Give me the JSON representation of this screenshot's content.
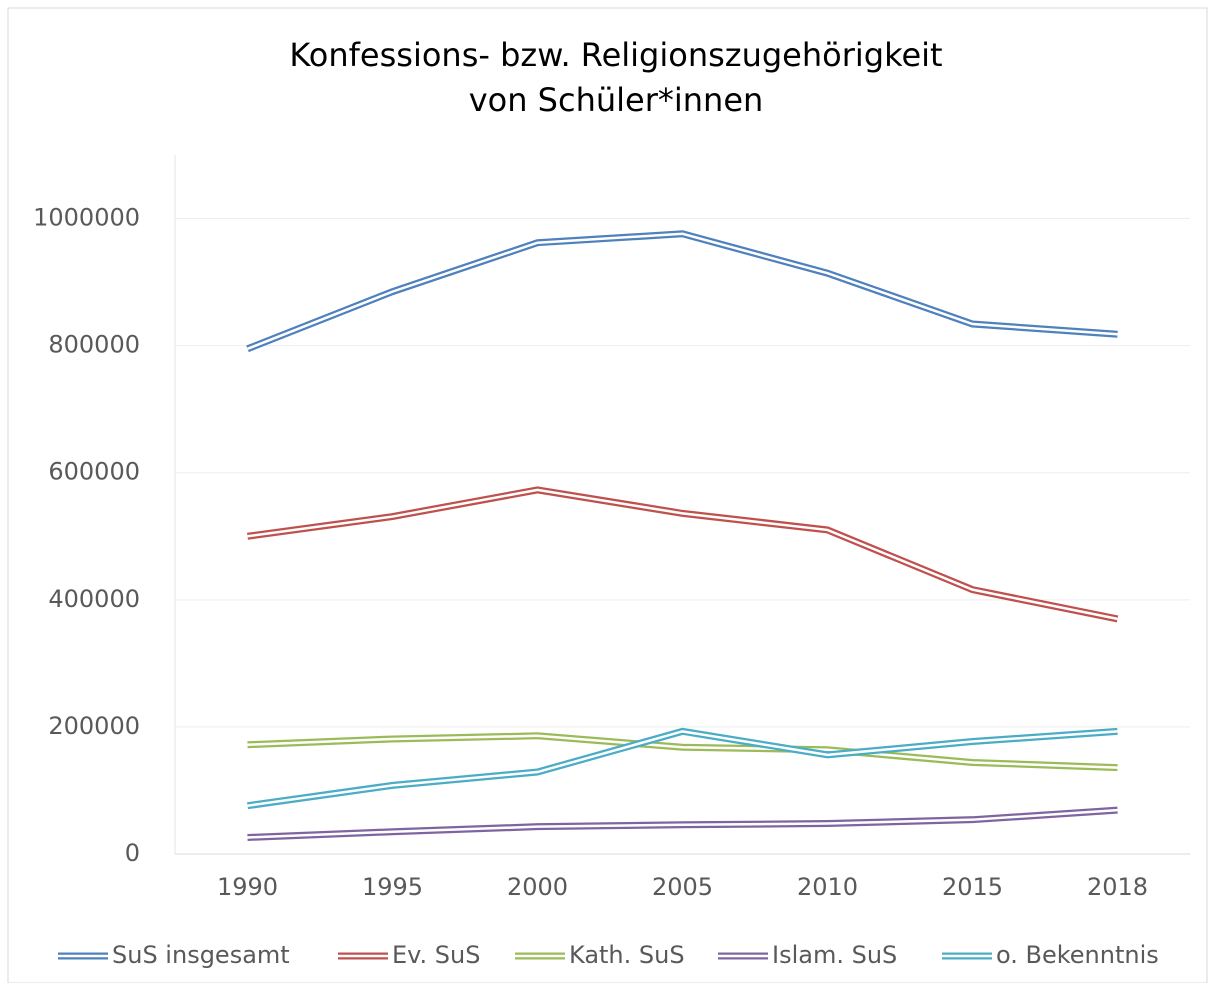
{
  "chart_data": {
    "type": "line",
    "title": [
      "Konfessions- bzw. Religionszugehörigkeit",
      "von Schüler*innen"
    ],
    "categories": [
      "1990",
      "1995",
      "2000",
      "2005",
      "2010",
      "2015",
      "2018"
    ],
    "series": [
      {
        "name": "SuS insgesamt",
        "color": "#4f81bd",
        "values": [
          795000,
          885000,
          962000,
          976000,
          914000,
          834000,
          818000
        ]
      },
      {
        "name": "Ev. SuS",
        "color": "#c0504d",
        "values": [
          500000,
          531000,
          573000,
          536000,
          510000,
          416000,
          370000
        ]
      },
      {
        "name": "Kath. SuS",
        "color": "#9bbb59",
        "values": [
          172000,
          181000,
          186000,
          168000,
          164000,
          144000,
          136000
        ]
      },
      {
        "name": "Islam. SuS",
        "color": "#8064a2",
        "values": [
          26000,
          35000,
          43000,
          46000,
          48000,
          54000,
          69000
        ]
      },
      {
        "name": "o. Bekenntnis",
        "color": "#4bacc6",
        "values": [
          76000,
          108000,
          129000,
          193000,
          156000,
          177000,
          193000
        ]
      }
    ],
    "ylim": [
      0,
      1100000
    ],
    "yticks": [
      0,
      200000,
      400000,
      600000,
      800000,
      1000000
    ],
    "grid": true,
    "legend": "bottom"
  }
}
